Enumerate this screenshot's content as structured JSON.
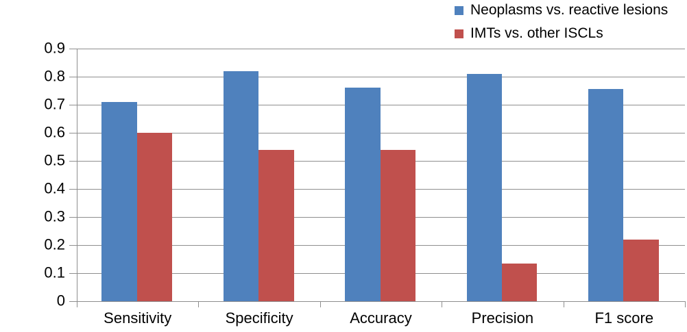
{
  "chart_data": {
    "type": "bar",
    "title": "",
    "xlabel": "",
    "ylabel": "",
    "categories": [
      "Sensitivity",
      "Specificity",
      "Accuracy",
      "Precision",
      "F1 score"
    ],
    "series": [
      {
        "name": "Neoplasms vs. reactive lesions",
        "color": "#4F81BD",
        "values": [
          0.71,
          0.82,
          0.76,
          0.81,
          0.755
        ]
      },
      {
        "name": "IMTs vs. other ISCLs",
        "color": "#C0504D",
        "values": [
          0.6,
          0.54,
          0.54,
          0.135,
          0.22
        ]
      }
    ],
    "ylim": [
      0,
      0.9
    ],
    "yticks": [
      0,
      0.1,
      0.2,
      0.3,
      0.4,
      0.5,
      0.6,
      0.7,
      0.8,
      0.9
    ],
    "ytick_labels": [
      "0",
      "0.1",
      "0.2",
      "0.3",
      "0.4",
      "0.5",
      "0.6",
      "0.7",
      "0.8",
      "0.9"
    ],
    "grid": true,
    "legend_position": "top-right",
    "gridline_color": "#8e8e8e",
    "axis_color": "#8e8e8e",
    "text_color": "#000000",
    "background_color": "#ffffff"
  }
}
